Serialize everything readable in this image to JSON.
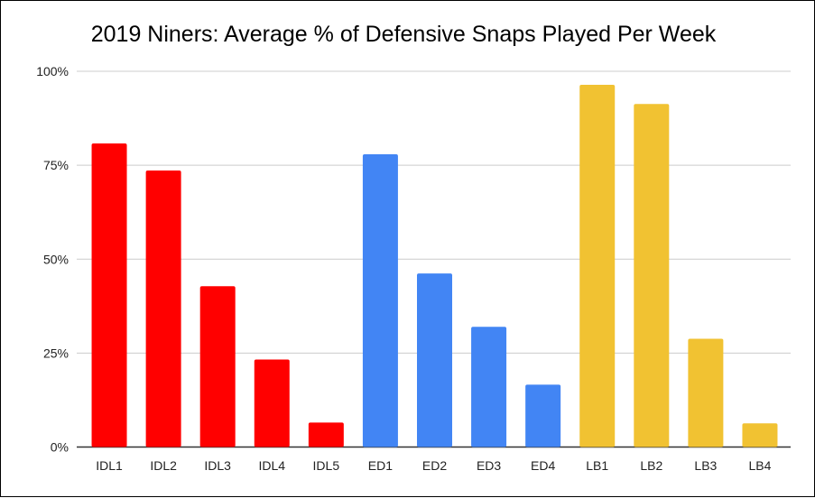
{
  "chart_data": {
    "type": "bar",
    "title": "2019 Niners: Average % of Defensive Snaps Played Per Week",
    "xlabel": "",
    "ylabel": "",
    "categories": [
      "IDL1",
      "IDL2",
      "IDL3",
      "IDL4",
      "IDL5",
      "ED1",
      "ED2",
      "ED3",
      "ED4",
      "LB1",
      "LB2",
      "LB3",
      "LB4"
    ],
    "values": [
      80.8,
      73.6,
      42.8,
      23.3,
      6.5,
      77.9,
      46.2,
      32.0,
      16.6,
      96.4,
      91.3,
      28.8,
      6.3
    ],
    "bar_colors": [
      "#ff0000",
      "#ff0000",
      "#ff0000",
      "#ff0000",
      "#ff0000",
      "#4285f4",
      "#4285f4",
      "#4285f4",
      "#4285f4",
      "#f1c232",
      "#f1c232",
      "#f1c232",
      "#f1c232"
    ],
    "ylim": [
      0,
      100
    ],
    "yticks": [
      0,
      25,
      50,
      75,
      100
    ],
    "ytick_labels": [
      "0%",
      "25%",
      "50%",
      "75%",
      "100%"
    ],
    "grid": true,
    "legend": "none"
  }
}
